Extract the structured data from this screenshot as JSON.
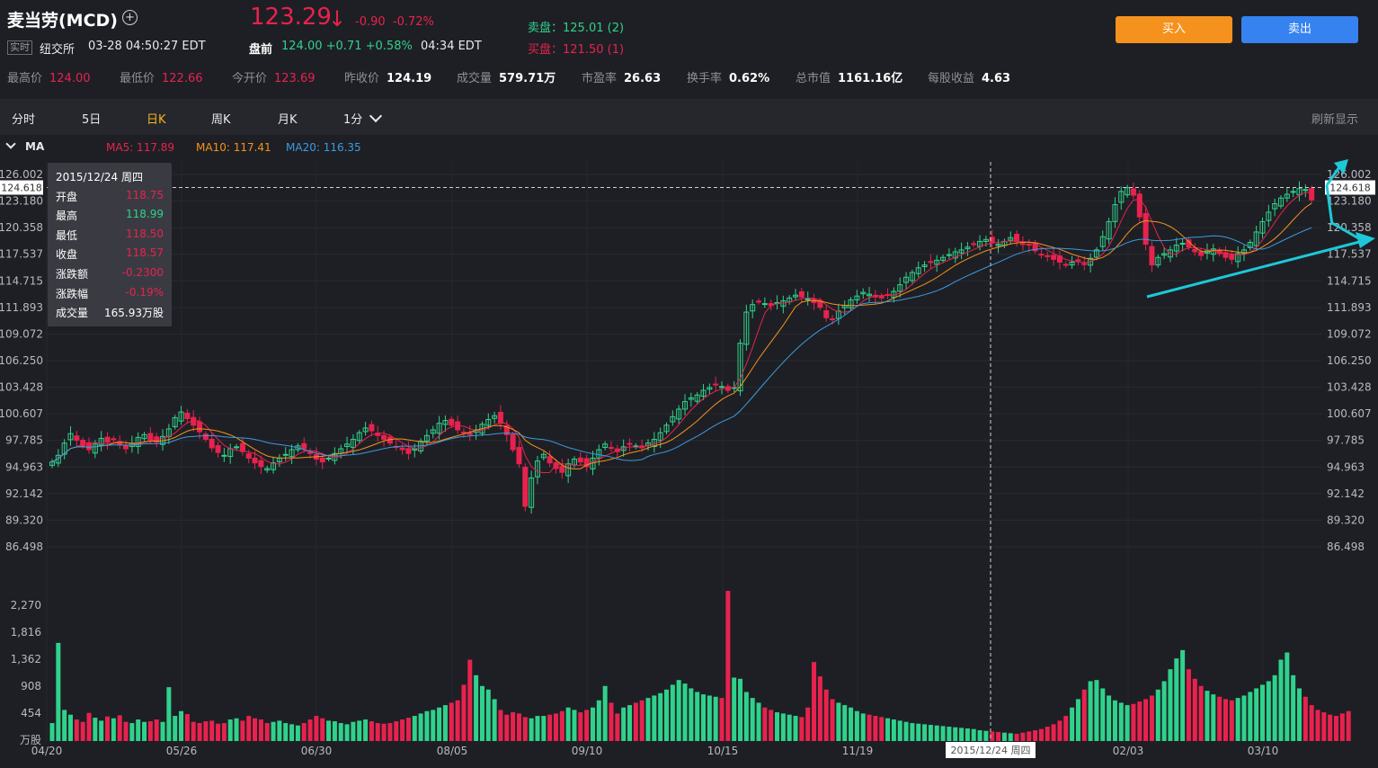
{
  "header": {
    "title": "麦当劳(MCD)",
    "add_icon": "plus-circle-icon",
    "live_tag": "实时",
    "exchange": "纽交所",
    "datetime": "03-28 04:50:27 EDT",
    "price": "123.29",
    "price_arrow": "↓",
    "change": "-0.90",
    "change_pct": "-0.72%",
    "premarket_label": "盘前",
    "premarket_price": "124.00",
    "premarket_change": "+0.71",
    "premarket_pct": "+0.58%",
    "premarket_time": "04:34 EDT",
    "ask": "卖盘：125.01 (2)",
    "bid": "买盘：121.50 (1)",
    "buy_label": "买入",
    "sell_label": "卖出"
  },
  "stats": [
    {
      "label": "最高价",
      "value": "124.00",
      "color": "red"
    },
    {
      "label": "最低价",
      "value": "122.66",
      "color": "red"
    },
    {
      "label": "今开价",
      "value": "123.69",
      "color": "red"
    },
    {
      "label": "昨收价",
      "value": "124.19",
      "color": "white"
    },
    {
      "label": "成交量",
      "value": "579.71万",
      "color": "white"
    },
    {
      "label": "市盈率",
      "value": "26.63",
      "color": "white"
    },
    {
      "label": "换手率",
      "value": "0.62%",
      "color": "white"
    },
    {
      "label": "总市值",
      "value": "1161.16亿",
      "color": "white"
    },
    {
      "label": "每股收益",
      "value": "4.63",
      "color": "white"
    }
  ],
  "tabs": [
    {
      "label": "分时"
    },
    {
      "label": "5日"
    },
    {
      "label": "日K",
      "active": true
    },
    {
      "label": "周K"
    },
    {
      "label": "月K"
    },
    {
      "label": "1分"
    }
  ],
  "refresh_label": "刷新显示",
  "ma": {
    "label": "MA",
    "ma5": "MA5: 117.89",
    "ma10": "MA10: 117.41",
    "ma20": "MA20: 116.35"
  },
  "tooltip": {
    "title": "2015/12/24 周四",
    "rows": [
      {
        "k": "开盘",
        "v": "118.75",
        "c": "red"
      },
      {
        "k": "最高",
        "v": "118.99",
        "c": "green"
      },
      {
        "k": "最低",
        "v": "118.50",
        "c": "red"
      },
      {
        "k": "收盘",
        "v": "118.57",
        "c": "red"
      },
      {
        "k": "涨跌额",
        "v": "-0.2300",
        "c": "red"
      },
      {
        "k": "涨跌幅",
        "v": "-0.19%",
        "c": "red"
      },
      {
        "k": "成交量",
        "v": "165.93万股",
        "c": "white"
      }
    ]
  },
  "colors": {
    "up": "#2fd28c",
    "down": "#e8224e",
    "ma5": "#e8224e",
    "ma10": "#f5921e",
    "ma20": "#3a9be0",
    "annotation": "#1ec8d8"
  },
  "chart_data": {
    "type": "candlestick",
    "price_ticks": [
      "126.002",
      "123.180",
      "120.358",
      "117.537",
      "114.715",
      "111.893",
      "109.072",
      "106.250",
      "103.428",
      "100.607",
      "97.785",
      "94.963",
      "92.142",
      "89.320",
      "86.498"
    ],
    "crosshair_price": "124.618",
    "volume_ticks": [
      "2,270",
      "1,816",
      "1,362",
      "908",
      "454",
      "万股"
    ],
    "x_ticks": [
      "04/20",
      "05/26",
      "06/30",
      "08/05",
      "09/10",
      "10/15",
      "11/19",
      "02/03",
      "03/10"
    ],
    "crosshair_date": "2015/12/24 周四",
    "ylim": [
      86.498,
      126.002
    ],
    "volume_max": 2270,
    "closes": [
      95.5,
      96.2,
      97.5,
      98.5,
      97.8,
      97.2,
      96.8,
      97.4,
      98.0,
      97.6,
      97.9,
      97.3,
      96.9,
      97.5,
      98.1,
      98.4,
      97.8,
      97.6,
      98.2,
      99.0,
      100.2,
      100.8,
      100.1,
      99.4,
      98.7,
      97.9,
      97.0,
      96.5,
      96.2,
      96.9,
      97.1,
      96.6,
      95.9,
      95.4,
      95.0,
      94.8,
      95.4,
      95.9,
      96.3,
      96.8,
      97.2,
      96.9,
      96.4,
      95.8,
      95.5,
      95.9,
      96.4,
      96.9,
      97.4,
      97.9,
      98.6,
      99.1,
      98.8,
      98.3,
      97.9,
      97.5,
      97.1,
      96.8,
      96.4,
      96.9,
      97.7,
      98.3,
      98.9,
      99.6,
      99.9,
      99.4,
      98.9,
      98.6,
      98.4,
      98.9,
      99.5,
      100.0,
      100.4,
      99.6,
      98.4,
      96.8,
      95.3,
      90.8,
      93.8,
      95.6,
      96.3,
      95.4,
      94.8,
      94.4,
      95.3,
      95.8,
      95.5,
      95.0,
      95.9,
      96.8,
      97.4,
      97.0,
      96.6,
      97.1,
      97.4,
      97.2,
      97.0,
      97.5,
      97.9,
      98.6,
      99.4,
      100.3,
      101.1,
      101.9,
      102.3,
      102.6,
      103.1,
      103.4,
      103.7,
      103.5,
      103.1,
      103.4,
      108.1,
      111.4,
      112.2,
      112.5,
      112.3,
      112.1,
      112.4,
      112.6,
      112.9,
      113.2,
      113.0,
      112.8,
      112.4,
      111.9,
      110.8,
      110.6,
      111.5,
      112.1,
      112.7,
      113.1,
      113.5,
      113.3,
      113.0,
      112.9,
      113.2,
      113.6,
      114.3,
      115.1,
      115.6,
      116.1,
      116.4,
      116.7,
      116.9,
      117.2,
      117.5,
      117.8,
      118.0,
      118.3,
      118.6,
      118.9,
      119.1,
      118.8,
      118.6,
      118.9,
      119.3,
      118.9,
      118.6,
      118.5,
      117.9,
      117.5,
      117.3,
      117.0,
      116.7,
      116.4,
      116.7,
      116.9,
      116.5,
      117.1,
      118.0,
      119.4,
      121.0,
      122.8,
      124.2,
      124.6,
      123.8,
      121.5,
      118.6,
      116.4,
      117.2,
      117.6,
      118.0,
      118.5,
      118.7,
      118.3,
      117.8,
      117.4,
      117.9,
      118.1,
      117.6,
      117.2,
      117.0,
      117.6,
      118.0,
      118.8,
      119.9,
      121.0,
      122.0,
      122.9,
      123.5,
      123.9,
      124.2,
      124.5,
      124.4,
      123.3
    ],
    "volumes": [
      300,
      1640,
      520,
      440,
      360,
      320,
      470,
      390,
      340,
      410,
      380,
      430,
      320,
      300,
      360,
      320,
      330,
      360,
      320,
      900,
      420,
      500,
      450,
      320,
      300,
      330,
      340,
      290,
      300,
      360,
      380,
      340,
      420,
      380,
      360,
      300,
      320,
      340,
      300,
      280,
      260,
      300,
      360,
      420,
      380,
      340,
      330,
      300,
      280,
      320,
      340,
      360,
      330,
      300,
      290,
      300,
      330,
      360,
      390,
      420,
      460,
      500,
      520,
      560,
      600,
      640,
      680,
      940,
      1360,
      1100,
      920,
      860,
      700,
      520,
      440,
      480,
      460,
      400,
      380,
      420,
      420,
      440,
      460,
      500,
      560,
      520,
      480,
      520,
      560,
      680,
      920,
      640,
      460,
      560,
      600,
      640,
      680,
      720,
      760,
      800,
      860,
      940,
      1020,
      960,
      880,
      820,
      780,
      760,
      740,
      720,
      2510,
      1060,
      1040,
      820,
      720,
      640,
      560,
      520,
      480,
      460,
      440,
      420,
      400,
      560,
      1320,
      1080,
      860,
      700,
      640,
      600,
      560,
      500,
      460,
      440,
      420,
      400,
      380,
      360,
      340,
      320,
      300,
      290,
      280,
      270,
      260,
      250,
      240,
      230,
      220,
      210,
      200,
      180,
      170,
      160,
      150,
      140,
      130,
      120,
      140,
      160,
      180,
      200,
      240,
      280,
      340,
      420,
      560,
      700,
      860,
      1000,
      1020,
      880,
      760,
      680,
      640,
      600,
      620,
      660,
      700,
      760,
      860,
      1000,
      1200,
      1380,
      1520,
      1200,
      1040,
      920,
      840,
      780,
      740,
      700,
      680,
      720,
      760,
      820,
      880,
      940,
      1000,
      1100,
      1360,
      1480,
      1100,
      880,
      740,
      600,
      520,
      480,
      440,
      420,
      460,
      500
    ]
  }
}
